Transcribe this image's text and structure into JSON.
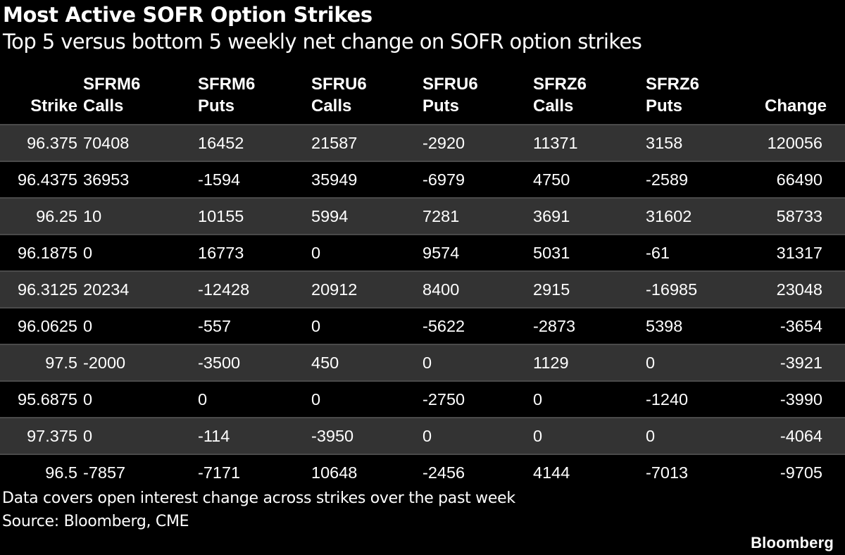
{
  "title": "Most Active SOFR Option Strikes",
  "subtitle": "Top 5 versus bottom 5 weekly net change on SOFR option strikes",
  "chart_data": {
    "type": "table",
    "columns": [
      {
        "line1": "",
        "line2": "Strike"
      },
      {
        "line1": "SFRM6",
        "line2": "Calls"
      },
      {
        "line1": "SFRM6",
        "line2": "Puts"
      },
      {
        "line1": "SFRU6",
        "line2": "Calls"
      },
      {
        "line1": "SFRU6",
        "line2": "Puts"
      },
      {
        "line1": "SFRZ6",
        "line2": "Calls"
      },
      {
        "line1": "SFRZ6",
        "line2": "Puts"
      },
      {
        "line1": "",
        "line2": "Change"
      }
    ],
    "rows": [
      [
        "96.375",
        "70408",
        "16452",
        "21587",
        "-2920",
        "11371",
        "3158",
        "120056"
      ],
      [
        "96.4375",
        "36953",
        "-1594",
        "35949",
        "-6979",
        "4750",
        "-2589",
        "66490"
      ],
      [
        "96.25",
        "10",
        "10155",
        "5994",
        "7281",
        "3691",
        "31602",
        "58733"
      ],
      [
        "96.1875",
        "0",
        "16773",
        "0",
        "9574",
        "5031",
        "-61",
        "31317"
      ],
      [
        "96.3125",
        "20234",
        "-12428",
        "20912",
        "8400",
        "2915",
        "-16985",
        "23048"
      ],
      [
        "96.0625",
        "0",
        "-557",
        "0",
        "-5622",
        "-2873",
        "5398",
        "-3654"
      ],
      [
        "97.5",
        "-2000",
        "-3500",
        "450",
        "0",
        "1129",
        "0",
        "-3921"
      ],
      [
        "95.6875",
        "0",
        "0",
        "0",
        "-2750",
        "0",
        "-1240",
        "-3990"
      ],
      [
        "97.375",
        "0",
        "-114",
        "-3950",
        "0",
        "0",
        "0",
        "-4064"
      ],
      [
        "96.5",
        "-7857",
        "-7171",
        "10648",
        "-2456",
        "4144",
        "-7013",
        "-9705"
      ]
    ]
  },
  "footnote": "Data covers open interest change across strikes over the past week",
  "source": "Source: Bloomberg, CME",
  "brand": "Bloomberg",
  "colors": {
    "background": "#000000",
    "stripe": "#333333",
    "text": "#ffffff",
    "divider": "#4a4a4a"
  }
}
